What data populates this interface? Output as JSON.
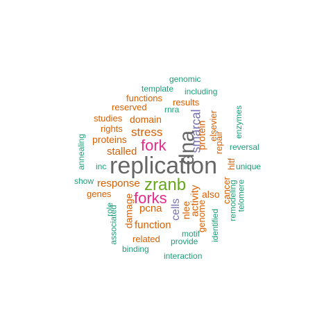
{
  "palette": {
    "green": "#1b9e77",
    "orange": "#d95f02",
    "purple": "#7570b3",
    "magenta": "#e7298a",
    "lime": "#66a61e",
    "gray": "#666666"
  },
  "words": [
    {
      "text": "replication",
      "color": "#666666"
    },
    {
      "text": "dna",
      "color": "#666666"
    },
    {
      "text": "zranb",
      "color": "#66a61e"
    },
    {
      "text": "fork",
      "color": "#e7298a"
    },
    {
      "text": "forks",
      "color": "#e7298a"
    },
    {
      "text": "smarcal",
      "color": "#7570b3"
    },
    {
      "text": "cells",
      "color": "#7570b3"
    },
    {
      "text": "stress",
      "color": "#d95f02"
    },
    {
      "text": "stalled",
      "color": "#d95f02"
    },
    {
      "text": "response",
      "color": "#d95f02"
    },
    {
      "text": "pcna",
      "color": "#d95f02"
    },
    {
      "text": "function",
      "color": "#d95f02"
    },
    {
      "text": "activity",
      "color": "#d95f02"
    },
    {
      "text": "protein",
      "color": "#d95f02"
    },
    {
      "text": "proteins",
      "color": "#d95f02"
    },
    {
      "text": "domain",
      "color": "#d95f02"
    },
    {
      "text": "damage",
      "color": "#d95f02"
    },
    {
      "text": "nlee",
      "color": "#d95f02"
    },
    {
      "text": "also",
      "color": "#d95f02"
    },
    {
      "text": "genome",
      "color": "#d95f02"
    },
    {
      "text": "repair",
      "color": "#d95f02"
    },
    {
      "text": "cancer",
      "color": "#d95f02"
    },
    {
      "text": "related",
      "color": "#d95f02"
    },
    {
      "text": "genes",
      "color": "#d95f02"
    },
    {
      "text": "rights",
      "color": "#d95f02"
    },
    {
      "text": "studies",
      "color": "#d95f02"
    },
    {
      "text": "reserved",
      "color": "#d95f02"
    },
    {
      "text": "functions",
      "color": "#d95f02"
    },
    {
      "text": "results",
      "color": "#d95f02"
    },
    {
      "text": "elsevier",
      "color": "#d95f02"
    },
    {
      "text": "hltf",
      "color": "#d95f02"
    },
    {
      "text": "rnra",
      "color": "#1b9e77"
    },
    {
      "text": "genomic",
      "color": "#1b9e77"
    },
    {
      "text": "template",
      "color": "#1b9e77"
    },
    {
      "text": "including",
      "color": "#1b9e77"
    },
    {
      "text": "annealing",
      "color": "#1b9e77"
    },
    {
      "text": "inc",
      "color": "#1b9e77"
    },
    {
      "text": "show",
      "color": "#1b9e77"
    },
    {
      "text": "role",
      "color": "#1b9e77"
    },
    {
      "text": "associated",
      "color": "#1b9e77"
    },
    {
      "text": "binding",
      "color": "#1b9e77"
    },
    {
      "text": "interaction",
      "color": "#1b9e77"
    },
    {
      "text": "provide",
      "color": "#1b9e77"
    },
    {
      "text": "motif",
      "color": "#1b9e77"
    },
    {
      "text": "identified",
      "color": "#1b9e77"
    },
    {
      "text": "remodeling",
      "color": "#1b9e77"
    },
    {
      "text": "telomere",
      "color": "#1b9e77"
    },
    {
      "text": "unique",
      "color": "#1b9e77"
    },
    {
      "text": "reversal",
      "color": "#1b9e77"
    },
    {
      "text": "enzymes",
      "color": "#1b9e77"
    }
  ]
}
